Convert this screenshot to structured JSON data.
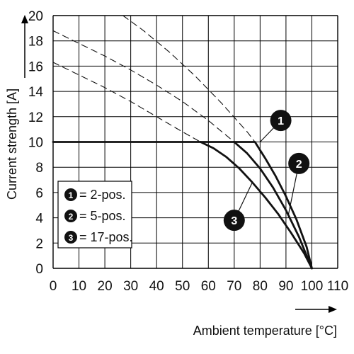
{
  "chart_data": {
    "type": "line",
    "xlabel": "Ambient temperature [°C]",
    "ylabel": "Current strength [A]",
    "xlim": [
      0,
      110
    ],
    "ylim": [
      0,
      20
    ],
    "x_ticks": [
      "0",
      "10",
      "20",
      "30",
      "40",
      "50",
      "60",
      "70",
      "80",
      "90",
      "100",
      "110"
    ],
    "y_ticks": [
      "0",
      "2",
      "4",
      "6",
      "8",
      "10",
      "12",
      "14",
      "16",
      "18",
      "20"
    ],
    "grid": true,
    "legend": [
      {
        "marker": "1",
        "text": "= 2-pos."
      },
      {
        "marker": "2",
        "text": "= 5-pos."
      },
      {
        "marker": "3",
        "text": "= 17-pos."
      }
    ],
    "series": [
      {
        "marker": "1",
        "style": "solid",
        "x": [
          0,
          78,
          82,
          86,
          90,
          94,
          98,
          100
        ],
        "y": [
          10,
          10,
          8.7,
          7.3,
          5.7,
          3.9,
          1.7,
          0
        ]
      },
      {
        "marker": "2",
        "style": "solid",
        "x": [
          70,
          75,
          80,
          85,
          90,
          95,
          100
        ],
        "y": [
          10,
          9.1,
          7.9,
          6.4,
          4.6,
          2.5,
          0
        ]
      },
      {
        "marker": "3",
        "style": "solid",
        "x": [
          57,
          62,
          67,
          72,
          77,
          82,
          87,
          92,
          97,
          100
        ],
        "y": [
          10,
          9.5,
          8.8,
          7.9,
          6.8,
          5.6,
          4.3,
          2.8,
          1.2,
          0
        ]
      },
      {
        "marker": "1",
        "style": "dashed",
        "x": [
          27,
          35,
          45,
          55,
          65,
          75,
          78
        ],
        "y": [
          20,
          18.8,
          17.1,
          15.2,
          13.1,
          10.8,
          10
        ]
      },
      {
        "marker": "2",
        "style": "dashed",
        "x": [
          0,
          10,
          20,
          30,
          40,
          50,
          60,
          70
        ],
        "y": [
          18.8,
          17.8,
          16.8,
          15.7,
          14.5,
          13.2,
          11.7,
          10
        ]
      },
      {
        "marker": "3",
        "style": "dashed",
        "x": [
          0,
          10,
          20,
          30,
          40,
          50,
          57
        ],
        "y": [
          16.3,
          15.3,
          14.3,
          13.2,
          12,
          10.8,
          10
        ]
      }
    ],
    "series_markers": [
      {
        "marker": "1",
        "x": 88,
        "y": 11.7
      },
      {
        "marker": "2",
        "x": 95,
        "y": 8.3
      },
      {
        "marker": "3",
        "x": 70,
        "y": 3.8
      }
    ]
  }
}
